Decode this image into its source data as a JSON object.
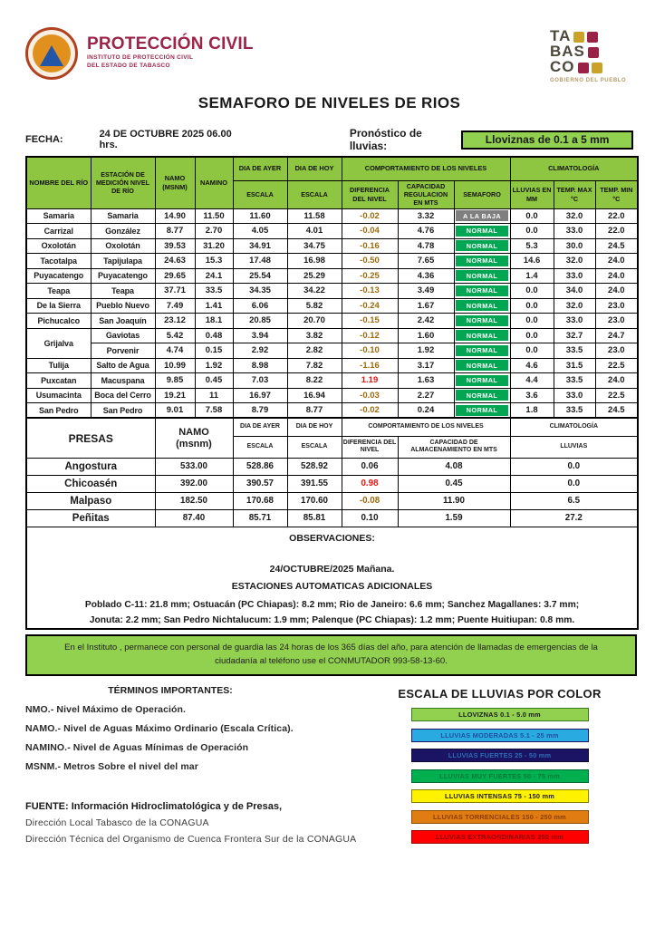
{
  "header": {
    "pc_logo": {
      "title": "PROTECCIÓN CIVIL",
      "line1": "INSTITUTO DE PROTECCIÓN CIVIL",
      "line2": "DEL ESTADO DE TABASCO"
    },
    "tabasco_logo": {
      "line1": "TA",
      "line2": "BAS",
      "line3": "CO",
      "caption": "GOBIERNO DEL PUEBLO"
    },
    "title": "SEMAFORO DE NIVELES DE RIOS",
    "fecha_label": "FECHA:",
    "fecha_value": "24 DE OCTUBRE 2025   06.00  hrs.",
    "pronostico_label": "Pronóstico de lluvias:",
    "pronostico_value": "Lloviznas de 0.1 a 5 mm"
  },
  "rivers_table": {
    "headers": {
      "rio": "NOMBRE DEL RÍO",
      "estacion": "ESTACIÓN DE MEDICIÓN NIVEL DE RÍO",
      "namo": "NAMO",
      "namo_sub": "(msnm)",
      "namino": "NAMINO",
      "ayer": "DIA DE AYER",
      "hoy": "DIA DE HOY",
      "escala": "ESCALA",
      "comportamiento": "COMPORTAMIENTO DE LOS NIVELES",
      "climatologia": "CLIMATOLOGÍA",
      "diferencia": "DIFERENCIA DEL NIVEL",
      "capacidad": "CAPACIDAD REGULACION EN MTS",
      "semaforo": "SEMAFORO",
      "lluvias": "LLUVIAS EN MM",
      "tmax": "TEMP. MAX °C",
      "tmin": "TEMP. MIN °C"
    },
    "rows": [
      {
        "rio": "Samaria",
        "rowspan": 1,
        "estacion": "Samaria",
        "namo": "14.90",
        "namino": "11.50",
        "ayer": "11.60",
        "hoy": "11.58",
        "dif": "-0.02",
        "trend": "down",
        "cap": "3.32",
        "sem": "A LA BAJA",
        "sem_state": "baja",
        "lluvia": "0.0",
        "tmax": "32.0",
        "tmin": "22.0"
      },
      {
        "rio": "Carrizal",
        "rowspan": 1,
        "estacion": "González",
        "namo": "8.77",
        "namino": "2.70",
        "ayer": "4.05",
        "hoy": "4.01",
        "dif": "-0.04",
        "trend": "down",
        "cap": "4.76",
        "sem": "NORMAL",
        "sem_state": "normal",
        "lluvia": "0.0",
        "tmax": "33.0",
        "tmin": "22.0"
      },
      {
        "rio": "Oxolotán",
        "rowspan": 1,
        "estacion": "Oxolotán",
        "namo": "39.53",
        "namino": "31.20",
        "ayer": "34.91",
        "hoy": "34.75",
        "dif": "-0.16",
        "trend": "down",
        "cap": "4.78",
        "sem": "NORMAL",
        "sem_state": "normal",
        "lluvia": "5.3",
        "tmax": "30.0",
        "tmin": "24.5"
      },
      {
        "rio": "Tacotalpa",
        "rowspan": 1,
        "estacion": "Tapijulapa",
        "namo": "24.63",
        "namino": "15.3",
        "ayer": "17.48",
        "hoy": "16.98",
        "dif": "-0.50",
        "trend": "down",
        "cap": "7.65",
        "sem": "NORMAL",
        "sem_state": "normal",
        "lluvia": "14.6",
        "tmax": "32.0",
        "tmin": "24.0"
      },
      {
        "rio": "Puyacatengo",
        "rowspan": 1,
        "estacion": "Puyacatengo",
        "namo": "29.65",
        "namino": "24.1",
        "ayer": "25.54",
        "hoy": "25.29",
        "dif": "-0.25",
        "trend": "down",
        "cap": "4.36",
        "sem": "NORMAL",
        "sem_state": "normal",
        "lluvia": "1.4",
        "tmax": "33.0",
        "tmin": "24.0"
      },
      {
        "rio": "Teapa",
        "rowspan": 1,
        "estacion": "Teapa",
        "namo": "37.71",
        "namino": "33.5",
        "ayer": "34.35",
        "hoy": "34.22",
        "dif": "-0.13",
        "trend": "down",
        "cap": "3.49",
        "sem": "NORMAL",
        "sem_state": "normal",
        "lluvia": "0.0",
        "tmax": "34.0",
        "tmin": "24.0"
      },
      {
        "rio": "De la Sierra",
        "rowspan": 1,
        "estacion": "Pueblo Nuevo",
        "namo": "7.49",
        "namino": "1.41",
        "ayer": "6.06",
        "hoy": "5.82",
        "dif": "-0.24",
        "trend": "down",
        "cap": "1.67",
        "sem": "NORMAL",
        "sem_state": "normal",
        "lluvia": "0.0",
        "tmax": "32.0",
        "tmin": "23.0"
      },
      {
        "rio": "Pichucalco",
        "rowspan": 1,
        "estacion": "San Joaquín",
        "namo": "23.12",
        "namino": "18.1",
        "ayer": "20.85",
        "hoy": "20.70",
        "dif": "-0.15",
        "trend": "down",
        "cap": "2.42",
        "sem": "NORMAL",
        "sem_state": "normal",
        "lluvia": "0.0",
        "tmax": "33.0",
        "tmin": "23.0"
      },
      {
        "rio": "Grijalva",
        "rowspan": 2,
        "estacion": "Gaviotas",
        "namo": "5.42",
        "namino": "0.48",
        "ayer": "3.94",
        "hoy": "3.82",
        "dif": "-0.12",
        "trend": "down",
        "cap": "1.60",
        "sem": "NORMAL",
        "sem_state": "normal",
        "lluvia": "0.0",
        "tmax": "32.7",
        "tmin": "24.7"
      },
      {
        "rio": null,
        "rowspan": 1,
        "estacion": "Porvenir",
        "namo": "4.74",
        "namino": "0.15",
        "ayer": "2.92",
        "hoy": "2.82",
        "dif": "-0.10",
        "trend": "down",
        "cap": "1.92",
        "sem": "NORMAL",
        "sem_state": "normal",
        "lluvia": "0.0",
        "tmax": "33.5",
        "tmin": "23.0"
      },
      {
        "rio": "Tulija",
        "rowspan": 1,
        "estacion": "Salto de Agua",
        "namo": "10.99",
        "namino": "1.92",
        "ayer": "8.98",
        "hoy": "7.82",
        "dif": "-1.16",
        "trend": "down",
        "cap": "3.17",
        "sem": "NORMAL",
        "sem_state": "normal",
        "lluvia": "4.6",
        "tmax": "31.5",
        "tmin": "22.5"
      },
      {
        "rio": "Puxcatan",
        "rowspan": 1,
        "estacion": "Macuspana",
        "namo": "9.85",
        "namino": "0.45",
        "ayer": "7.03",
        "hoy": "8.22",
        "dif": "1.19",
        "trend": "up",
        "cap": "1.63",
        "sem": "NORMAL",
        "sem_state": "normal",
        "lluvia": "4.4",
        "tmax": "33.5",
        "tmin": "24.0"
      },
      {
        "rio": "Usumacinta",
        "rowspan": 1,
        "estacion": "Boca del Cerro",
        "namo": "19.21",
        "namino": "11",
        "ayer": "16.97",
        "hoy": "16.94",
        "dif": "-0.03",
        "trend": "down",
        "cap": "2.27",
        "sem": "NORMAL",
        "sem_state": "normal",
        "lluvia": "3.6",
        "tmax": "33.0",
        "tmin": "22.5"
      },
      {
        "rio": "San Pedro",
        "rowspan": 1,
        "estacion": "San Pedro",
        "namo": "9.01",
        "namino": "7.58",
        "ayer": "8.79",
        "hoy": "8.77",
        "dif": "-0.02",
        "trend": "down",
        "cap": "0.24",
        "sem": "NORMAL",
        "sem_state": "normal",
        "lluvia": "1.8",
        "tmax": "33.5",
        "tmin": "24.5"
      }
    ]
  },
  "presas_table": {
    "headers": {
      "presas": "PRESAS",
      "namo": "NAMO",
      "namo_sub": "(msnm)",
      "ayer": "DIA DE AYER",
      "hoy": "DIA DE HOY",
      "escala": "ESCALA",
      "comportamiento": "COMPORTAMIENTO DE LOS NIVELES",
      "diferencia": "DIFERENCIA DEL NIVEL",
      "capacidad": "CAPACIDAD DE ALMACENAMIENTO EN MTS",
      "climatologia": "CLIMATOLOGÍA",
      "lluvias": "LLUVIAS"
    },
    "rows": [
      {
        "nombre": "Angostura",
        "namo": "533.00",
        "ayer": "528.86",
        "hoy": "528.92",
        "dif": "0.06",
        "trend": "flat",
        "cap": "4.08",
        "lluvia": "0.0"
      },
      {
        "nombre": "Chicoasén",
        "namo": "392.00",
        "ayer": "390.57",
        "hoy": "391.55",
        "dif": "0.98",
        "trend": "up",
        "cap": "0.45",
        "lluvia": "0.0"
      },
      {
        "nombre": "Malpaso",
        "namo": "182.50",
        "ayer": "170.68",
        "hoy": "170.60",
        "dif": "-0.08",
        "trend": "down",
        "cap": "11.90",
        "lluvia": "6.5"
      },
      {
        "nombre": "Peñitas",
        "namo": "87.40",
        "ayer": "85.71",
        "hoy": "85.81",
        "dif": "0.10",
        "trend": "flat",
        "cap": "1.59",
        "lluvia": "27.2"
      }
    ]
  },
  "observaciones": {
    "title": "OBSERVACIONES:",
    "date_line": "24/OCTUBRE/2025 Mañana.",
    "subtitle": "ESTACIONES AUTOMATICAS ADICIONALES",
    "line1": "Poblado C-11: 21.8 mm; Ostuacán (PC Chiapas): 8.2 mm; Rio de Janeiro: 6.6 mm; Sanchez Magallanes: 3.7 mm;",
    "line2": "Jonuta: 2.2 mm; San Pedro Nichtalucum: 1.9 mm; Palenque (PC Chiapas): 1.2 mm; Puente Huitiupan: 0.8 mm."
  },
  "notice": "En el Instituto , permanece con personal de guardia las 24 horas de los 365 días del año, para atención de llamadas de emergencias de la ciudadanía al teléfono use el CONMUTADOR  993-58-13-60.",
  "terminos": {
    "title": "TÉRMINOS IMPORTANTES:",
    "items": [
      "NMO.- Nivel Máximo de Operación.",
      "NAMO.- Nivel de Aguas Máximo Ordinario (Escala Crítica).",
      "NAMINO.- Nivel de Aguas Mínimas de Operación",
      "MSNM.- Metros Sobre el nivel del mar"
    ]
  },
  "escala": {
    "title": "ESCALA DE LLUVIAS POR COLOR",
    "items": [
      {
        "label": "LLOVIZNAS   0.1 -  5.0 mm",
        "bg": "#92d050",
        "border": "#3a7a1e",
        "color": "#1a1a1a"
      },
      {
        "label": "LLUVIAS MODERADAS 5.1 - 25 mm",
        "bg": "#29abe2",
        "border": "#1b1464",
        "color": "#1f4f9e"
      },
      {
        "label": "LLUVIAS FUERTES       25 - 50 mm",
        "bg": "#1b1464",
        "border": "#0d0a33",
        "color": "#2e6db4"
      },
      {
        "label": "LLUVIAS MUY FUERTES   50 - 75 mm",
        "bg": "#00b050",
        "border": "#046a33",
        "color": "#0a7a38"
      },
      {
        "label": "LLUVIAS INTENSAS   75 - 150 mm",
        "bg": "#fff200",
        "border": "#8a8000",
        "color": "#1a1a1a"
      },
      {
        "label": "LLUVIAS TORRENCIALES  150 - 250  mm",
        "bg": "#e07c12",
        "border": "#8a4a00",
        "color": "#8c3c00"
      },
      {
        "label": "LLUVIAS EXTRAORDINARIAS 250  mm",
        "bg": "#ff0000",
        "border": "#990000",
        "color": "#8f0000"
      }
    ]
  },
  "fuente": {
    "bold": "FUENTE: Información Hidroclimatológica y de Presas,",
    "line1": "Dirección Local Tabasco de la CONAGUA",
    "line2": "Dirección Técnica del Organismo de Cuenca Frontera Sur de la CONAGUA"
  },
  "colors": {
    "header_green": "#8ec641",
    "box_green": "#92d050",
    "badge_normal": "#00a651",
    "badge_baja": "#7f7f7f",
    "diff_down": "#9c6b0c",
    "diff_up": "#e8120a",
    "diff_flat": "#1a1a1a",
    "brand_maroon": "#9d2449",
    "brand_wine": "#9b2247",
    "brand_tan": "#c9a227"
  }
}
